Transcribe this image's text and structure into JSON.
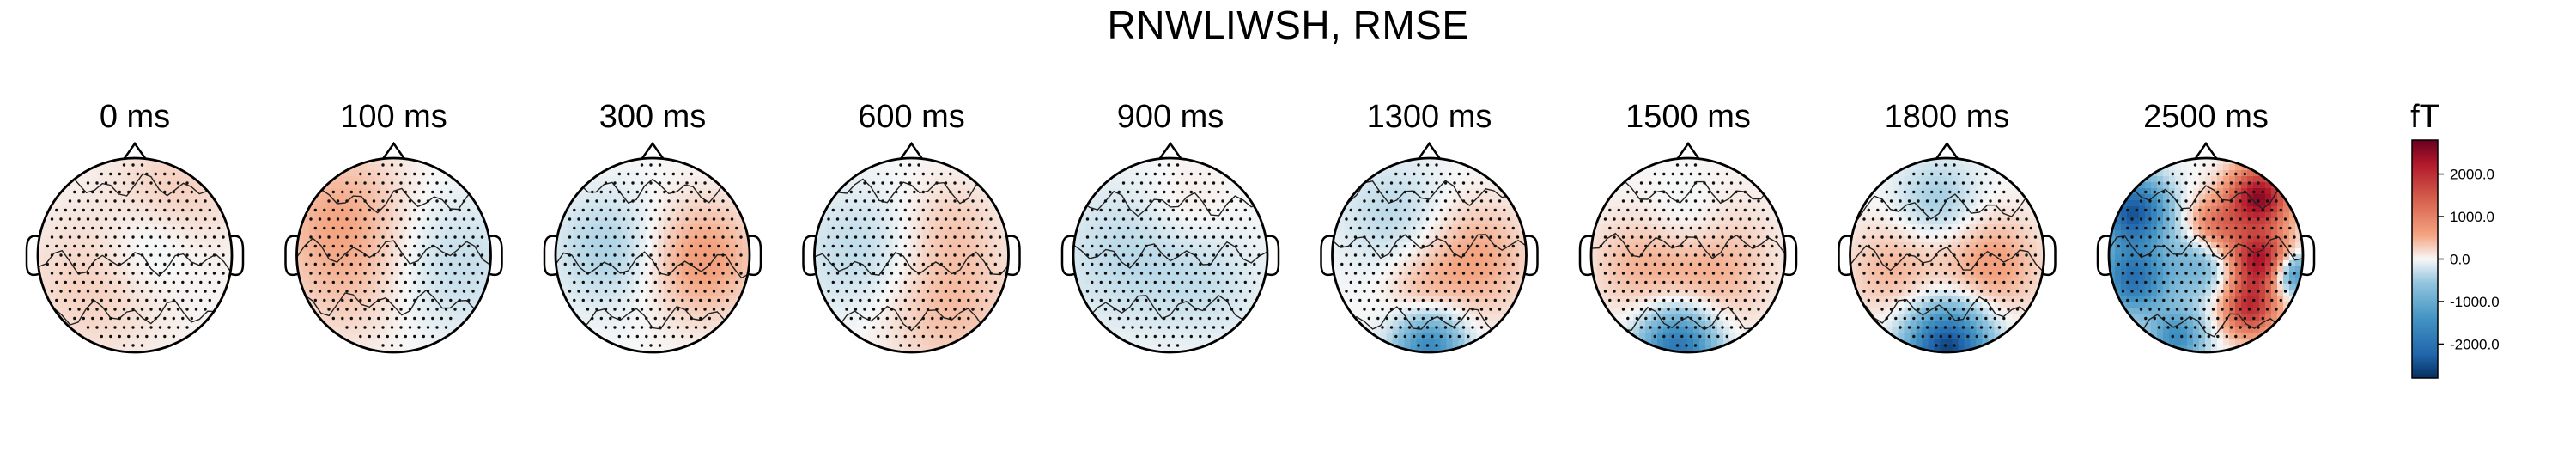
{
  "chart_data": {
    "type": "heatmap",
    "title": "RNWLIWSH, RMSE",
    "unit": "fT",
    "colormap": "RdBu_r",
    "colorbar": {
      "label": "fT",
      "ticks": [
        2000.0,
        1000.0,
        0.0,
        -1000.0,
        -2000.0
      ],
      "tick_labels": [
        "2000.0",
        "1000.0",
        "0.0",
        "-1000.0",
        "-2000.0"
      ],
      "range": [
        -2800,
        2800
      ]
    },
    "panels": [
      {
        "label": "0 ms",
        "time_ms": 0,
        "min": -300,
        "max": 350,
        "blobs": [
          {
            "u": -0.4,
            "v": 0.3,
            "s": 0.55,
            "a": 280
          },
          {
            "u": 0.4,
            "v": -0.6,
            "s": 0.45,
            "a": 300
          },
          {
            "u": 0.15,
            "v": -0.1,
            "s": 0.35,
            "a": -280
          }
        ]
      },
      {
        "label": "100 ms",
        "time_ms": 100,
        "min": -350,
        "max": 600,
        "blobs": [
          {
            "u": -0.55,
            "v": -0.45,
            "s": 0.5,
            "a": 450
          },
          {
            "u": -0.45,
            "v": 0.25,
            "s": 0.5,
            "a": 300
          },
          {
            "u": 0.55,
            "v": 0.1,
            "s": 0.5,
            "a": -320
          }
        ]
      },
      {
        "label": "300 ms",
        "time_ms": 300,
        "min": -450,
        "max": 700,
        "blobs": [
          {
            "u": 0.5,
            "v": 0.05,
            "s": 0.4,
            "a": 680
          },
          {
            "u": -0.45,
            "v": -0.05,
            "s": 0.4,
            "a": -440
          }
        ]
      },
      {
        "label": "600 ms",
        "time_ms": 600,
        "min": -400,
        "max": 450,
        "blobs": [
          {
            "u": 0.35,
            "v": 0.5,
            "s": 0.5,
            "a": 420
          },
          {
            "u": -0.5,
            "v": 0.0,
            "s": 0.45,
            "a": -350
          },
          {
            "u": 0.4,
            "v": -0.3,
            "s": 0.35,
            "a": 250
          }
        ]
      },
      {
        "label": "900 ms",
        "time_ms": 900,
        "min": -350,
        "max": 250,
        "blobs": [
          {
            "u": -0.45,
            "v": 0.0,
            "s": 0.5,
            "a": -330
          },
          {
            "u": 0.4,
            "v": 0.3,
            "s": 0.4,
            "a": -220
          },
          {
            "u": 0.15,
            "v": -0.5,
            "s": 0.3,
            "a": 150
          }
        ]
      },
      {
        "label": "1300 ms",
        "time_ms": 1300,
        "min": -1600,
        "max": 650,
        "blobs": [
          {
            "u": 0.0,
            "v": 0.95,
            "s": 0.25,
            "a": -1600
          },
          {
            "u": 0.45,
            "v": 0.05,
            "s": 0.4,
            "a": 600
          },
          {
            "u": -0.35,
            "v": -0.4,
            "s": 0.4,
            "a": -350
          },
          {
            "u": -0.1,
            "v": 0.35,
            "s": 0.25,
            "a": 300
          }
        ]
      },
      {
        "label": "1500 ms",
        "time_ms": 1500,
        "min": -2000,
        "max": 600,
        "blobs": [
          {
            "u": -0.1,
            "v": 0.95,
            "s": 0.28,
            "a": -2000
          },
          {
            "u": 0.2,
            "v": 0.1,
            "s": 0.45,
            "a": 550
          },
          {
            "u": -0.55,
            "v": 0.1,
            "s": 0.35,
            "a": 350
          },
          {
            "u": 0.0,
            "v": -0.3,
            "s": 0.3,
            "a": -300
          }
        ]
      },
      {
        "label": "1800 ms",
        "time_ms": 1800,
        "min": -2600,
        "max": 700,
        "blobs": [
          {
            "u": 0.0,
            "v": 0.95,
            "s": 0.3,
            "a": -2600
          },
          {
            "u": 0.45,
            "v": 0.1,
            "s": 0.35,
            "a": 650
          },
          {
            "u": -0.55,
            "v": 0.15,
            "s": 0.35,
            "a": 450
          },
          {
            "u": -0.1,
            "v": -0.55,
            "s": 0.3,
            "a": -500
          }
        ]
      },
      {
        "label": "2500 ms",
        "time_ms": 2500,
        "min": -2500,
        "max": 2600,
        "blobs": [
          {
            "u": 0.55,
            "v": -0.6,
            "s": 0.22,
            "a": 2500
          },
          {
            "u": 0.55,
            "v": 0.05,
            "s": 0.22,
            "a": 2300
          },
          {
            "u": 0.45,
            "v": 0.55,
            "s": 0.2,
            "a": 1900
          },
          {
            "u": -0.75,
            "v": -0.45,
            "s": 0.25,
            "a": -2400
          },
          {
            "u": -0.75,
            "v": 0.25,
            "s": 0.25,
            "a": -2000
          },
          {
            "u": -0.3,
            "v": 0.85,
            "s": 0.2,
            "a": -1500
          },
          {
            "u": 0.9,
            "v": 0.2,
            "s": 0.15,
            "a": -1600
          },
          {
            "u": -0.05,
            "v": 0.1,
            "s": 0.25,
            "a": -900
          },
          {
            "u": 0.1,
            "v": -0.3,
            "s": 0.2,
            "a": 1200
          }
        ]
      }
    ]
  }
}
